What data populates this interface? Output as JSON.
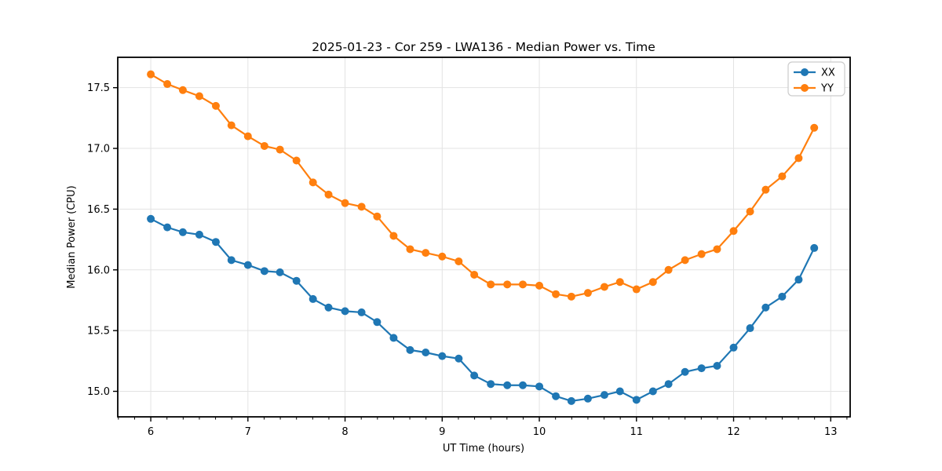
{
  "figure": {
    "title": "2025-01-23 - Cor 259 - LWA136 - Median Power vs. Time",
    "background": "#ffffff"
  },
  "chart_data": {
    "type": "line",
    "title": "2025-01-23 - Cor 259 - LWA136 - Median Power vs. Time",
    "xlabel": "UT Time (hours)",
    "ylabel": "Median Power (CPU)",
    "grid": true,
    "grid_color": "#e3e3e3",
    "legend_position": "upper right",
    "marker": "circle",
    "x": [
      6.0,
      6.17,
      6.33,
      6.5,
      6.67,
      6.83,
      7.0,
      7.17,
      7.33,
      7.5,
      7.67,
      7.83,
      8.0,
      8.17,
      8.33,
      8.5,
      8.67,
      8.83,
      9.0,
      9.17,
      9.33,
      9.5,
      9.67,
      9.83,
      10.0,
      10.17,
      10.33,
      10.5,
      10.67,
      10.83,
      11.0,
      11.17,
      11.33,
      11.5,
      11.67,
      11.83,
      12.0,
      12.17,
      12.33,
      12.5,
      12.67,
      12.83
    ],
    "series": [
      {
        "name": "XX",
        "color": "#1f77b4",
        "values": [
          16.42,
          16.35,
          16.31,
          16.29,
          16.23,
          16.08,
          16.04,
          15.99,
          15.98,
          15.91,
          15.76,
          15.69,
          15.66,
          15.65,
          15.57,
          15.44,
          15.34,
          15.32,
          15.29,
          15.27,
          15.13,
          15.06,
          15.05,
          15.05,
          15.04,
          14.96,
          14.92,
          14.94,
          14.97,
          15.0,
          14.93,
          15.0,
          15.06,
          15.16,
          15.19,
          15.21,
          15.36,
          15.52,
          15.69,
          15.78,
          15.92,
          16.18
        ]
      },
      {
        "name": "YY",
        "color": "#ff7f0e",
        "values": [
          17.61,
          17.53,
          17.48,
          17.43,
          17.35,
          17.19,
          17.1,
          17.02,
          16.99,
          16.9,
          16.72,
          16.62,
          16.55,
          16.52,
          16.44,
          16.28,
          16.17,
          16.14,
          16.11,
          16.07,
          15.96,
          15.88,
          15.88,
          15.88,
          15.87,
          15.8,
          15.78,
          15.81,
          15.86,
          15.9,
          15.84,
          15.9,
          16.0,
          16.08,
          16.13,
          16.17,
          16.32,
          16.48,
          16.66,
          16.77,
          16.92,
          17.17
        ]
      }
    ],
    "xlim": [
      5.66,
      13.2
    ],
    "ylim": [
      14.79,
      17.75
    ],
    "xticks": [
      6,
      7,
      8,
      9,
      10,
      11,
      12,
      13
    ],
    "yticks": [
      15.0,
      15.5,
      16.0,
      16.5,
      17.0,
      17.5
    ],
    "x_minor_step": 0.16667
  }
}
